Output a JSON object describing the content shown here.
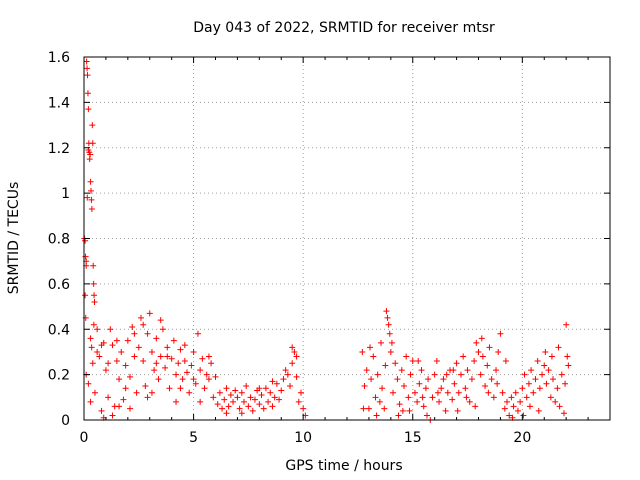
{
  "chart_data": {
    "type": "scatter",
    "title": "Day 043 of 2022, SRMTID for receiver mtsr",
    "xlabel": "GPS time / hours",
    "ylabel": "SRMTID / TECUs",
    "xlim": [
      0,
      24
    ],
    "ylim": [
      0,
      1.6
    ],
    "xticks": [
      0,
      5,
      10,
      15,
      20
    ],
    "yticks": [
      0,
      0.2,
      0.4,
      0.6,
      0.8,
      1,
      1.2,
      1.4,
      1.6
    ],
    "xtick_labels": [
      "0",
      "5",
      "10",
      "15",
      "20"
    ],
    "ytick_labels": [
      "0",
      "0.2",
      "0.4",
      "0.6",
      "0.8",
      "1",
      "1.2",
      "1.4",
      "1.6"
    ],
    "grid": true,
    "marker": "plus",
    "color": "#ff0000",
    "series": [
      {
        "points": [
          [
            0.02,
            0.8
          ],
          [
            0.05,
            0.79
          ],
          [
            0.07,
            0.72
          ],
          [
            0.08,
            0.45
          ],
          [
            0.1,
            0.7
          ],
          [
            0.12,
            1.58
          ],
          [
            0.14,
            1.55
          ],
          [
            0.16,
            1.52
          ],
          [
            0.18,
            1.44
          ],
          [
            0.2,
            1.37
          ],
          [
            0.22,
            1.22
          ],
          [
            0.24,
            1.18
          ],
          [
            0.26,
            1.15
          ],
          [
            0.28,
            1.17
          ],
          [
            0.3,
            1.05
          ],
          [
            0.32,
            1.01
          ],
          [
            0.34,
            0.97
          ],
          [
            0.36,
            0.93
          ],
          [
            0.38,
            1.3
          ],
          [
            0.4,
            1.22
          ],
          [
            0.42,
            0.68
          ],
          [
            0.44,
            0.6
          ],
          [
            0.46,
            0.55
          ],
          [
            0.48,
            0.52
          ],
          [
            0.15,
            0.98
          ],
          [
            0.2,
            1.19
          ],
          [
            0.1,
            0.68
          ],
          [
            0.05,
            0.55
          ],
          [
            0.3,
            0.36
          ],
          [
            0.35,
            0.32
          ],
          [
            0.4,
            0.25
          ],
          [
            0.45,
            0.42
          ],
          [
            0.1,
            0.2
          ],
          [
            0.2,
            0.16
          ],
          [
            0.3,
            0.08
          ],
          [
            0.5,
            0.12
          ],
          [
            0.6,
            0.3
          ],
          [
            0.7,
            0.28
          ],
          [
            0.8,
            0.04
          ],
          [
            0.9,
            0.34
          ],
          [
            1.0,
            0.22
          ],
          [
            1.1,
            0.1
          ],
          [
            1.2,
            0.4
          ],
          [
            1.3,
            0.33
          ],
          [
            1.4,
            0.06
          ],
          [
            1.5,
            0.26
          ],
          [
            1.6,
            0.18
          ],
          [
            1.7,
            0.3
          ],
          [
            1.8,
            0.09
          ],
          [
            1.9,
            0.24
          ],
          [
            2.0,
            0.35
          ],
          [
            2.1,
            0.19
          ],
          [
            2.2,
            0.41
          ],
          [
            2.3,
            0.28
          ],
          [
            2.4,
            0.12
          ],
          [
            2.5,
            0.32
          ],
          [
            2.6,
            0.45
          ],
          [
            2.7,
            0.26
          ],
          [
            2.8,
            0.15
          ],
          [
            2.9,
            0.38
          ],
          [
            3.0,
            0.47
          ],
          [
            3.1,
            0.3
          ],
          [
            3.2,
            0.22
          ],
          [
            3.3,
            0.36
          ],
          [
            3.4,
            0.18
          ],
          [
            3.5,
            0.28
          ],
          [
            3.6,
            0.4
          ],
          [
            3.7,
            0.23
          ],
          [
            3.8,
            0.32
          ],
          [
            3.9,
            0.14
          ],
          [
            4.0,
            0.27
          ],
          [
            4.1,
            0.35
          ],
          [
            4.2,
            0.2
          ],
          [
            4.3,
            0.25
          ],
          [
            4.4,
            0.31
          ],
          [
            4.5,
            0.18
          ],
          [
            4.6,
            0.26
          ],
          [
            4.7,
            0.21
          ],
          [
            4.8,
            0.12
          ],
          [
            4.9,
            0.24
          ],
          [
            5.0,
            0.3
          ],
          [
            5.1,
            0.16
          ],
          [
            5.2,
            0.38
          ],
          [
            5.3,
            0.22
          ],
          [
            5.4,
            0.27
          ],
          [
            5.5,
            0.14
          ],
          [
            5.6,
            0.2
          ],
          [
            5.7,
            0.18
          ],
          [
            5.8,
            0.25
          ],
          [
            5.9,
            0.1
          ],
          [
            6.0,
            0.19
          ],
          [
            6.1,
            0.07
          ],
          [
            6.2,
            0.12
          ],
          [
            6.3,
            0.05
          ],
          [
            6.4,
            0.09
          ],
          [
            6.5,
            0.14
          ],
          [
            6.6,
            0.06
          ],
          [
            6.7,
            0.11
          ],
          [
            6.8,
            0.08
          ],
          [
            6.9,
            0.13
          ],
          [
            7.0,
            0.1
          ],
          [
            7.1,
            0.05
          ],
          [
            7.2,
            0.12
          ],
          [
            7.3,
            0.08
          ],
          [
            7.4,
            0.15
          ],
          [
            7.5,
            0.06
          ],
          [
            7.6,
            0.1
          ],
          [
            7.7,
            0.04
          ],
          [
            7.8,
            0.09
          ],
          [
            7.9,
            0.13
          ],
          [
            8.0,
            0.07
          ],
          [
            8.1,
            0.11
          ],
          [
            8.2,
            0.05
          ],
          [
            8.3,
            0.14
          ],
          [
            8.4,
            0.08
          ],
          [
            8.5,
            0.12
          ],
          [
            8.6,
            0.06
          ],
          [
            8.7,
            0.1
          ],
          [
            8.8,
            0.16
          ],
          [
            8.9,
            0.09
          ],
          [
            9.0,
            0.13
          ],
          [
            9.1,
            0.18
          ],
          [
            9.2,
            0.22
          ],
          [
            9.3,
            0.2
          ],
          [
            9.4,
            0.15
          ],
          [
            9.5,
            0.25
          ],
          [
            9.6,
            0.3
          ],
          [
            9.7,
            0.19
          ],
          [
            9.8,
            0.08
          ],
          [
            9.9,
            0.12
          ],
          [
            10.0,
            0.05
          ],
          [
            10.1,
            0.02
          ],
          [
            0.6,
            0.4
          ],
          [
            0.8,
            0.33
          ],
          [
            1.1,
            0.25
          ],
          [
            1.5,
            0.35
          ],
          [
            1.9,
            0.14
          ],
          [
            2.3,
            0.38
          ],
          [
            2.7,
            0.42
          ],
          [
            3.1,
            0.12
          ],
          [
            3.5,
            0.44
          ],
          [
            3.8,
            0.28
          ],
          [
            4.2,
            0.08
          ],
          [
            4.6,
            0.33
          ],
          [
            5.0,
            0.18
          ],
          [
            5.3,
            0.08
          ],
          [
            5.7,
            0.28
          ],
          [
            6.5,
            0.03
          ],
          [
            7.2,
            0.03
          ],
          [
            8.0,
            0.14
          ],
          [
            8.6,
            0.17
          ],
          [
            9.5,
            0.32
          ],
          [
            9.7,
            0.28
          ],
          [
            1.3,
            0.02
          ],
          [
            2.1,
            0.05
          ],
          [
            2.9,
            0.1
          ],
          [
            3.3,
            0.25
          ],
          [
            4.4,
            0.14
          ],
          [
            0.9,
            0.01
          ],
          [
            1.6,
            0.06
          ],
          [
            12.7,
            0.3
          ],
          [
            12.8,
            0.15
          ],
          [
            12.9,
            0.22
          ],
          [
            13.0,
            0.05
          ],
          [
            13.1,
            0.18
          ],
          [
            13.2,
            0.28
          ],
          [
            13.3,
            0.1
          ],
          [
            13.4,
            0.2
          ],
          [
            13.5,
            0.08
          ],
          [
            13.6,
            0.14
          ],
          [
            13.7,
            0.05
          ],
          [
            13.8,
            0.48
          ],
          [
            13.85,
            0.45
          ],
          [
            13.9,
            0.42
          ],
          [
            13.95,
            0.38
          ],
          [
            14.0,
            0.3
          ],
          [
            14.1,
            0.12
          ],
          [
            14.2,
            0.25
          ],
          [
            14.3,
            0.18
          ],
          [
            14.4,
            0.07
          ],
          [
            14.5,
            0.22
          ],
          [
            14.6,
            0.15
          ],
          [
            14.7,
            0.28
          ],
          [
            14.8,
            0.1
          ],
          [
            14.9,
            0.2
          ],
          [
            15.0,
            0.26
          ],
          [
            15.1,
            0.12
          ],
          [
            15.2,
            0.08
          ],
          [
            15.3,
            0.16
          ],
          [
            15.4,
            0.22
          ],
          [
            15.5,
            0.06
          ],
          [
            15.6,
            0.14
          ],
          [
            15.7,
            0.18
          ],
          [
            15.8,
            0.0
          ],
          [
            15.9,
            0.1
          ],
          [
            16.0,
            0.2
          ],
          [
            16.1,
            0.26
          ],
          [
            16.2,
            0.08
          ],
          [
            16.3,
            0.14
          ],
          [
            16.4,
            0.18
          ],
          [
            16.5,
            0.04
          ],
          [
            16.6,
            0.12
          ],
          [
            16.7,
            0.22
          ],
          [
            16.8,
            0.09
          ],
          [
            16.9,
            0.16
          ],
          [
            17.0,
            0.25
          ],
          [
            17.1,
            0.12
          ],
          [
            17.2,
            0.2
          ],
          [
            17.3,
            0.28
          ],
          [
            17.4,
            0.14
          ],
          [
            17.5,
            0.22
          ],
          [
            17.6,
            0.08
          ],
          [
            17.7,
            0.18
          ],
          [
            17.8,
            0.26
          ],
          [
            17.9,
            0.34
          ],
          [
            18.0,
            0.3
          ],
          [
            18.1,
            0.2
          ],
          [
            18.2,
            0.28
          ],
          [
            18.3,
            0.15
          ],
          [
            18.4,
            0.24
          ],
          [
            18.5,
            0.32
          ],
          [
            18.6,
            0.18
          ],
          [
            18.7,
            0.1
          ],
          [
            18.8,
            0.22
          ],
          [
            18.9,
            0.3
          ],
          [
            19.0,
            0.38
          ],
          [
            19.1,
            0.12
          ],
          [
            19.2,
            0.05
          ],
          [
            19.3,
            0.08
          ],
          [
            19.4,
            0.02
          ],
          [
            19.5,
            0.1
          ],
          [
            19.6,
            0.06
          ],
          [
            19.7,
            0.12
          ],
          [
            19.8,
            0.04
          ],
          [
            19.9,
            0.08
          ],
          [
            20.0,
            0.14
          ],
          [
            20.1,
            0.2
          ],
          [
            20.2,
            0.1
          ],
          [
            20.3,
            0.16
          ],
          [
            20.4,
            0.22
          ],
          [
            20.5,
            0.12
          ],
          [
            20.6,
            0.18
          ],
          [
            20.7,
            0.26
          ],
          [
            20.8,
            0.14
          ],
          [
            20.9,
            0.2
          ],
          [
            21.0,
            0.24
          ],
          [
            21.1,
            0.16
          ],
          [
            21.2,
            0.22
          ],
          [
            21.3,
            0.1
          ],
          [
            21.4,
            0.18
          ],
          [
            21.5,
            0.08
          ],
          [
            21.6,
            0.14
          ],
          [
            21.7,
            0.06
          ],
          [
            21.8,
            0.2
          ],
          [
            21.9,
            0.03
          ],
          [
            22.0,
            0.42
          ],
          [
            22.05,
            0.28
          ],
          [
            22.1,
            0.24
          ],
          [
            12.75,
            0.05
          ],
          [
            13.05,
            0.32
          ],
          [
            13.35,
            0.02
          ],
          [
            13.75,
            0.24
          ],
          [
            14.05,
            0.34
          ],
          [
            14.35,
            0.02
          ],
          [
            14.85,
            0.04
          ],
          [
            15.25,
            0.26
          ],
          [
            15.65,
            0.02
          ],
          [
            16.15,
            0.12
          ],
          [
            16.55,
            0.2
          ],
          [
            17.05,
            0.04
          ],
          [
            17.45,
            0.1
          ],
          [
            17.85,
            0.06
          ],
          [
            18.15,
            0.36
          ],
          [
            18.45,
            0.12
          ],
          [
            18.85,
            0.16
          ],
          [
            19.25,
            0.26
          ],
          [
            19.55,
            0.01
          ],
          [
            20.05,
            0.02
          ],
          [
            20.35,
            0.06
          ],
          [
            20.75,
            0.04
          ],
          [
            21.05,
            0.3
          ],
          [
            21.35,
            0.28
          ],
          [
            21.65,
            0.32
          ],
          [
            21.95,
            0.16
          ],
          [
            16.85,
            0.22
          ],
          [
            14.55,
            0.04
          ],
          [
            15.45,
            0.1
          ],
          [
            13.55,
            0.34
          ]
        ]
      }
    ]
  }
}
